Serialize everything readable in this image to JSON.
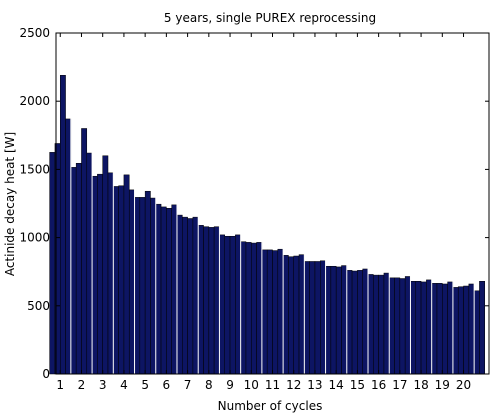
{
  "chart_data": {
    "type": "bar",
    "title": "5 years, single PUREX reprocessing",
    "xlabel": "Number of cycles",
    "ylabel": "Actinide decay heat [W]",
    "ylim": [
      0,
      2500
    ],
    "xlim": [
      0.8,
      21.2
    ],
    "yticks": [
      0,
      500,
      1000,
      1500,
      2000,
      2500
    ],
    "xticks": [
      1,
      2,
      3,
      4,
      5,
      6,
      7,
      8,
      9,
      10,
      11,
      12,
      13,
      14,
      15,
      16,
      17,
      18,
      19,
      20
    ],
    "bar_color": "#0d1563",
    "separator_color": "#ffffff",
    "grid": false,
    "cycles": [
      {
        "cycle": 1,
        "values": [
          1625,
          1690,
          2190,
          1870
        ]
      },
      {
        "cycle": 2,
        "values": [
          1515,
          1545,
          1800,
          1620
        ]
      },
      {
        "cycle": 3,
        "values": [
          1450,
          1465,
          1600,
          1475
        ]
      },
      {
        "cycle": 4,
        "values": [
          1375,
          1380,
          1460,
          1350
        ]
      },
      {
        "cycle": 5,
        "values": [
          1295,
          1295,
          1340,
          1290
        ]
      },
      {
        "cycle": 6,
        "values": [
          1245,
          1225,
          1215,
          1240
        ]
      },
      {
        "cycle": 7,
        "values": [
          1165,
          1150,
          1140,
          1150
        ]
      },
      {
        "cycle": 8,
        "values": [
          1090,
          1080,
          1075,
          1080
        ]
      },
      {
        "cycle": 9,
        "values": [
          1020,
          1010,
          1010,
          1020
        ]
      },
      {
        "cycle": 10,
        "values": [
          970,
          965,
          960,
          965
        ]
      },
      {
        "cycle": 11,
        "values": [
          910,
          910,
          905,
          915
        ]
      },
      {
        "cycle": 12,
        "values": [
          870,
          860,
          865,
          875
        ]
      },
      {
        "cycle": 13,
        "values": [
          825,
          825,
          825,
          830
        ]
      },
      {
        "cycle": 14,
        "values": [
          790,
          790,
          785,
          795
        ]
      },
      {
        "cycle": 15,
        "values": [
          760,
          755,
          760,
          770
        ]
      },
      {
        "cycle": 16,
        "values": [
          730,
          725,
          725,
          740
        ]
      },
      {
        "cycle": 17,
        "values": [
          705,
          705,
          700,
          715
        ]
      },
      {
        "cycle": 18,
        "values": [
          680,
          680,
          675,
          690
        ]
      },
      {
        "cycle": 19,
        "values": [
          665,
          665,
          660,
          675
        ]
      },
      {
        "cycle": 20,
        "values": [
          635,
          640,
          645,
          660
        ]
      },
      {
        "cycle": 21,
        "values": [
          610,
          680
        ]
      }
    ]
  }
}
